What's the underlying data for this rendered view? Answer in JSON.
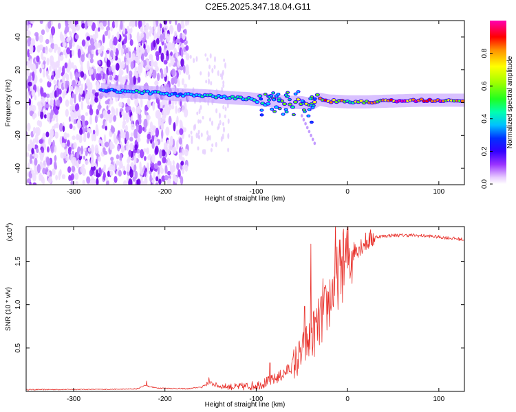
{
  "title": "C2E5.2025.347.18.04.G11",
  "chart_data": [
    {
      "type": "heatmap",
      "name": "spectrogram",
      "xlabel": "Height of straight line (km)",
      "ylabel": "Frequency (Hz)",
      "xlim": [
        -352,
        128
      ],
      "ylim": [
        -50,
        50
      ],
      "xticks": [
        -300,
        -200,
        -100,
        0,
        100
      ],
      "yticks": [
        -40,
        -20,
        0,
        20,
        40
      ],
      "colorbar": {
        "label": "Normalized spectral amplitude",
        "range": [
          0,
          1
        ],
        "ticks": [
          "0.0",
          "0.2",
          "0.4",
          "0.6",
          "0.8"
        ],
        "tick_values": [
          0,
          0.2,
          0.4,
          0.6,
          0.8
        ],
        "colors": [
          "#ffffff",
          "#d9b3ff",
          "#8000ff",
          "#0000ff",
          "#00c8ff",
          "#00ff80",
          "#40ff00",
          "#ffff00",
          "#ff8000",
          "#ff0000",
          "#ff00c0"
        ]
      },
      "ridge": {
        "x": [
          -270,
          -250,
          -230,
          -210,
          -190,
          -170,
          -150,
          -130,
          -110,
          -90,
          -70,
          -50,
          -40,
          -30,
          -20,
          0,
          20,
          50,
          80,
          100,
          128
        ],
        "freq": [
          8,
          7,
          6.5,
          6,
          5,
          4.5,
          4,
          3,
          2.5,
          1.5,
          0.5,
          0,
          -1,
          2,
          1,
          0.5,
          0.5,
          1,
          1.5,
          1.5,
          1.5
        ],
        "amp": [
          0.45,
          0.5,
          0.55,
          0.55,
          0.5,
          0.55,
          0.6,
          0.6,
          0.62,
          0.65,
          0.7,
          0.72,
          0.8,
          0.8,
          0.85,
          0.75,
          0.8,
          0.95,
          0.98,
          0.9,
          0.85
        ]
      },
      "noise_region": [
        -352,
        -175
      ],
      "sparse_noise_region": [
        -175,
        -130
      ]
    },
    {
      "type": "line",
      "name": "snr",
      "xlabel": "Height of straight line (km)",
      "ylabel": "SNR (10 * v/v)",
      "scale_label": "(x10",
      "scale_exponent": "4",
      "xlim": [
        -352,
        128
      ],
      "ylim": [
        0,
        1.9
      ],
      "xticks": [
        -300,
        -200,
        -100,
        0,
        100
      ],
      "yticks": [
        0.5,
        1.0,
        1.5
      ],
      "ytick_labels": [
        "0.5",
        "1.0",
        "1.5"
      ],
      "color": "#e8302a",
      "envelope": {
        "x": [
          -352,
          -250,
          -230,
          -222,
          -210,
          -175,
          -160,
          -152,
          -140,
          -120,
          -100,
          -90,
          -80,
          -70,
          -60,
          -50,
          -45,
          -40,
          -30,
          -25,
          -20,
          -15,
          -10,
          -5,
          0,
          10,
          20,
          30,
          50,
          70,
          90,
          110,
          128
        ],
        "y": [
          0.02,
          0.025,
          0.03,
          0.07,
          0.04,
          0.03,
          0.05,
          0.1,
          0.06,
          0.05,
          0.07,
          0.1,
          0.14,
          0.2,
          0.3,
          0.42,
          0.55,
          0.62,
          0.8,
          0.9,
          1.05,
          1.2,
          1.35,
          1.45,
          1.55,
          1.65,
          1.72,
          1.78,
          1.8,
          1.8,
          1.79,
          1.77,
          1.75
        ]
      },
      "spikes": [
        {
          "x": -220,
          "y": 0.12
        },
        {
          "x": -152,
          "y": 0.16
        },
        {
          "x": -85,
          "y": 0.33
        },
        {
          "x": -47,
          "y": 0.98
        },
        {
          "x": -40,
          "y": 1.7
        },
        {
          "x": -27,
          "y": 1.3
        },
        {
          "x": -13,
          "y": 1.95
        },
        {
          "x": -5,
          "y": 1.82
        }
      ]
    }
  ]
}
